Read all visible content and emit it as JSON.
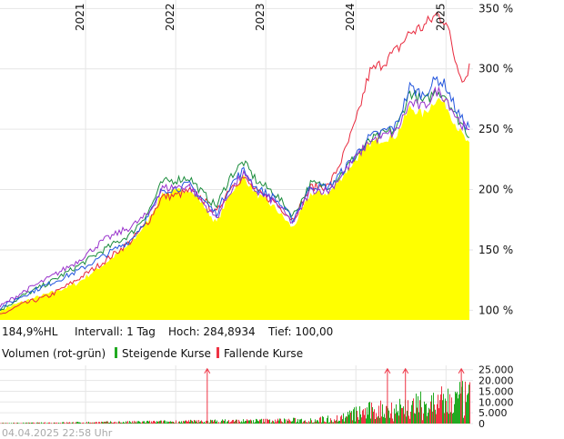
{
  "chart_data": [
    {
      "type": "line",
      "title": "",
      "y_unit": "%",
      "ylim": [
        92,
        354
      ],
      "xlim": [
        2020.05,
        2025.3
      ],
      "grid": true,
      "x_ticks": [
        {
          "value": 2021,
          "label": "2021"
        },
        {
          "value": 2022,
          "label": "2022"
        },
        {
          "value": 2023,
          "label": "2023"
        },
        {
          "value": 2024,
          "label": "2024"
        },
        {
          "value": 2025,
          "label": "2025"
        }
      ],
      "y_ticks": [
        {
          "value": 100,
          "label": "100 %"
        },
        {
          "value": 150,
          "label": "150 %"
        },
        {
          "value": 200,
          "label": "200 %"
        },
        {
          "value": 250,
          "label": "250 %"
        },
        {
          "value": 300,
          "label": "300 %"
        },
        {
          "value": 350,
          "label": "350 %"
        }
      ],
      "area_color": "#ffff00",
      "area": {
        "x": [
          2020.05,
          2020.3,
          2020.6,
          2020.9,
          2021.2,
          2021.5,
          2021.7,
          2021.85,
          2022.0,
          2022.15,
          2022.3,
          2022.45,
          2022.6,
          2022.75,
          2022.9,
          2023.1,
          2023.3,
          2023.5,
          2023.7,
          2023.85,
          2024.0,
          2024.15,
          2024.3,
          2024.45,
          2024.6,
          2024.75,
          2024.9,
          2025.0,
          2025.1,
          2025.2,
          2025.26
        ],
        "y": [
          100,
          107,
          114,
          122,
          138,
          155,
          175,
          197,
          198,
          201,
          188,
          172,
          196,
          211,
          196,
          185,
          168,
          197,
          197,
          211,
          225,
          238,
          242,
          245,
          268,
          262,
          276,
          270,
          255,
          243,
          236
        ]
      },
      "series": [
        {
          "color": "#e8283c",
          "y": [
            96,
            105,
            112,
            125,
            140,
            157,
            174,
            194,
            195,
            199,
            192,
            180,
            202,
            210,
            198,
            190,
            175,
            202,
            203,
            226,
            256,
            297,
            305,
            315,
            330,
            335,
            345,
            340,
            308,
            290,
            303
          ]
        },
        {
          "color": "#1a8c3c",
          "y": [
            100,
            112,
            123,
            136,
            150,
            163,
            182,
            206,
            208,
            210,
            197,
            186,
            210,
            223,
            207,
            197,
            178,
            205,
            203,
            214,
            228,
            240,
            246,
            250,
            281,
            272,
            282,
            278,
            262,
            252,
            244
          ]
        },
        {
          "color": "#2255dd",
          "y": [
            102,
            112,
            122,
            132,
            145,
            158,
            178,
            200,
            201,
            204,
            192,
            180,
            203,
            216,
            201,
            193,
            175,
            203,
            202,
            215,
            229,
            243,
            248,
            253,
            285,
            278,
            292,
            286,
            268,
            255,
            252
          ]
        },
        {
          "color": "#9933cc",
          "y": [
            103,
            115,
            127,
            140,
            158,
            169,
            180,
            201,
            202,
            203,
            189,
            176,
            198,
            213,
            198,
            190,
            172,
            200,
            199,
            213,
            226,
            240,
            244,
            248,
            272,
            268,
            282,
            276,
            262,
            252,
            246
          ]
        }
      ]
    },
    {
      "type": "bar",
      "title": "",
      "ylim": [
        0,
        27000
      ],
      "y_ticks": [
        {
          "value": 0,
          "label": "0"
        },
        {
          "value": 5000,
          "label": "5.000"
        },
        {
          "value": 10000,
          "label": "10.000"
        },
        {
          "value": 15000,
          "label": "15.000"
        },
        {
          "value": 20000,
          "label": "20.000"
        },
        {
          "value": 25000,
          "label": "25.000"
        }
      ],
      "up_color": "#22aa22",
      "down_color": "#ee3344",
      "volume_profile": {
        "x": [
          2020.05,
          2020.6,
          2021.0,
          2021.5,
          2022.0,
          2022.5,
          2023.0,
          2023.5,
          2023.8,
          2024.0,
          2024.3,
          2024.6,
          2024.9,
          2025.1,
          2025.26
        ],
        "avg": [
          200,
          350,
          500,
          700,
          900,
          1100,
          1300,
          1600,
          2400,
          4500,
          6500,
          7500,
          9000,
          10500,
          11000
        ]
      },
      "spikes": [
        {
          "x": 2022.35,
          "value": 25000
        },
        {
          "x": 2024.35,
          "value": 25000
        },
        {
          "x": 2024.55,
          "value": 25000
        },
        {
          "x": 2025.17,
          "value": 25000
        }
      ]
    }
  ],
  "info_bar": {
    "range": "184,9%HL",
    "interval": "Intervall: 1 Tag",
    "high": "Hoch: 284,8934",
    "low": "Tief:  100,00"
  },
  "volume_legend": {
    "title": "Volumen (rot-grün)",
    "up_label": "Steigende Kurse",
    "down_label": "Fallende Kurse"
  },
  "timestamp": "04.04.2025 22:58 Uhr"
}
